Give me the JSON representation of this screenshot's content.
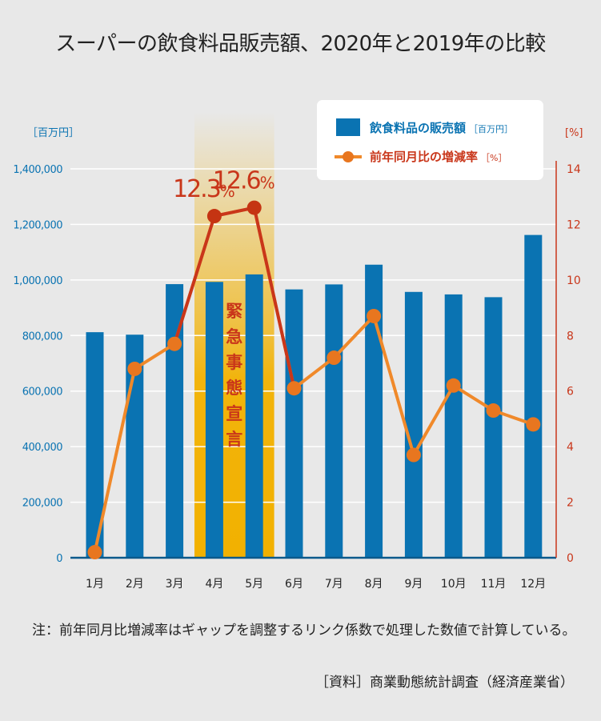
{
  "title": "スーパーの飲食料品販売額、2020年と2019年の比較",
  "note": "注：前年同月比増減率はギャップを調整するリンク係数で処理した数値で計算している。",
  "source": "［資料］商業動態統計調査（経済産業省）",
  "colors": {
    "bar": "#0a73b2",
    "line": "#f0892a",
    "line_marker": "#e8761f",
    "highlight_line": "#c9361a",
    "highlight_marker": "#c53412",
    "band": "#f2b100",
    "background": "#e8e8e8",
    "left_axis": "#0a73b2",
    "right_axis": "#c9361a"
  },
  "chart_data": {
    "type": "bar+line",
    "categories": [
      "1月",
      "2月",
      "3月",
      "4月",
      "5月",
      "6月",
      "7月",
      "8月",
      "9月",
      "10月",
      "11月",
      "12月"
    ],
    "series": [
      {
        "name": "飲食料品の販売額",
        "unit": "［百万円］",
        "axis": "left",
        "values": [
          812000,
          803000,
          985000,
          993000,
          1020000,
          966000,
          984000,
          1055000,
          957000,
          948000,
          938000,
          1162000
        ]
      },
      {
        "name": "前年同月比の増減率",
        "unit": "［%］",
        "axis": "right",
        "values": [
          0.2,
          6.8,
          7.7,
          12.3,
          12.6,
          6.1,
          7.2,
          8.7,
          3.7,
          6.2,
          5.3,
          4.8
        ]
      }
    ],
    "left_axis": {
      "unit_label": "［百万円］",
      "ylim": [
        0,
        1400000
      ],
      "ticks": [
        {
          "v": 0,
          "label": "0"
        },
        {
          "v": 200000,
          "label": "200,000"
        },
        {
          "v": 400000,
          "label": "400,000"
        },
        {
          "v": 600000,
          "label": "600,000"
        },
        {
          "v": 800000,
          "label": "800,000"
        },
        {
          "v": 1000000,
          "label": "1,000,000"
        },
        {
          "v": 1200000,
          "label": "1,200,000"
        },
        {
          "v": 1400000,
          "label": "1,400,000"
        }
      ]
    },
    "right_axis": {
      "unit_label": "[%]",
      "ylim": [
        0,
        14
      ],
      "ticks": [
        {
          "v": 0,
          "label": "0"
        },
        {
          "v": 2,
          "label": "2"
        },
        {
          "v": 4,
          "label": "4"
        },
        {
          "v": 6,
          "label": "6"
        },
        {
          "v": 8,
          "label": "8"
        },
        {
          "v": 10,
          "label": "10"
        },
        {
          "v": 12,
          "label": "12"
        },
        {
          "v": 14,
          "label": "14"
        }
      ]
    },
    "highlight": {
      "label": "緊急事態宣言",
      "categories": [
        "4月",
        "5月"
      ]
    },
    "data_labels": [
      {
        "category": "4月",
        "text": "12.3%"
      },
      {
        "category": "5月",
        "text": "12.6%"
      }
    ],
    "grid": true,
    "legend": {
      "position": "top-right"
    }
  }
}
